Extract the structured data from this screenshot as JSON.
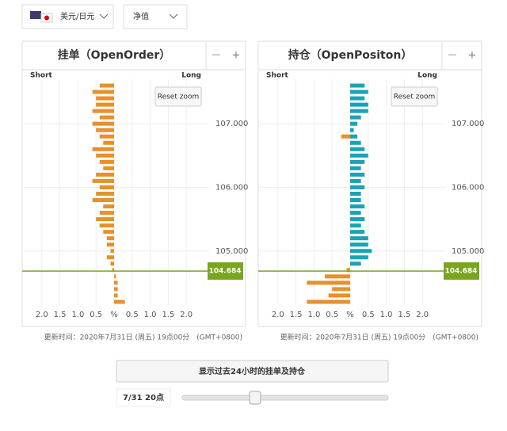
{
  "selector": {
    "pair": "美元/日元",
    "mode": "净值"
  },
  "chart_data": [
    {
      "type": "butterfly",
      "title": "挂单（OpenOrder）",
      "zoom_out": "—",
      "zoom_in": "+",
      "reset": "Reset zoom",
      "y": [
        107.6,
        107.5,
        107.4,
        107.3,
        107.2,
        107.1,
        107.0,
        106.9,
        106.8,
        106.7,
        106.6,
        106.5,
        106.4,
        106.3,
        106.2,
        106.1,
        106.0,
        105.9,
        105.8,
        105.7,
        105.6,
        105.5,
        105.4,
        105.3,
        105.2,
        105.1,
        105.0,
        104.9,
        104.8,
        104.7,
        104.6,
        104.5,
        104.4,
        104.3,
        104.2
      ],
      "series": [
        {
          "name": "Short",
          "color": "#e8902a",
          "values": [
            0.4,
            0.6,
            0.5,
            0.5,
            0.6,
            0.4,
            0.6,
            0.5,
            0.4,
            0.3,
            0.6,
            0.5,
            0.4,
            0.3,
            0.5,
            0.6,
            0.4,
            0.5,
            0.6,
            0.3,
            0.4,
            0.5,
            0.4,
            0.3,
            0.2,
            0.2,
            0.1,
            0.2,
            0.1,
            0.05,
            null,
            null,
            null,
            null,
            null
          ]
        },
        {
          "name": "Long",
          "color": "#e8902a",
          "values": [
            null,
            null,
            null,
            null,
            null,
            null,
            null,
            null,
            null,
            null,
            null,
            null,
            null,
            null,
            null,
            null,
            null,
            null,
            null,
            null,
            null,
            null,
            null,
            null,
            null,
            null,
            null,
            null,
            null,
            null,
            0.05,
            0.1,
            0.1,
            0.1,
            0.3
          ]
        }
      ],
      "xlim": [
        0,
        2.5
      ],
      "short_xticks": [
        {
          "value": 2,
          "label": "2.0"
        },
        {
          "value": 1.5,
          "label": "1.5"
        },
        {
          "value": 1,
          "label": "1.0"
        },
        0.5
      ],
      "zero_tick": {
        "value": 0,
        "label": "%"
      },
      "long_xticks": [
        0.5,
        {
          "value": 1,
          "label": "1.0"
        },
        1.5,
        {
          "value": 2,
          "label": "2.0"
        }
      ],
      "ylim": [
        104.15,
        107.7
      ],
      "yticks": [
        {
          "value": 107,
          "label": "107.000"
        },
        {
          "value": 106,
          "label": "106.000"
        },
        {
          "value": 105,
          "label": "105.000"
        }
      ],
      "current_price": 104.684,
      "price_color": "#7aa51e",
      "grid": true,
      "updated": "更新时间：2020年7月31日 (周五) 19点00分　(GMT+0800)"
    },
    {
      "type": "butterfly",
      "title": "持仓（OpenPositon）",
      "zoom_out": "—",
      "zoom_in": "+",
      "reset": "Reset zoom",
      "y": [
        107.6,
        107.5,
        107.4,
        107.3,
        107.2,
        107.1,
        107.0,
        106.9,
        106.8,
        106.7,
        106.6,
        106.5,
        106.4,
        106.3,
        106.2,
        106.1,
        106.0,
        105.9,
        105.8,
        105.7,
        105.6,
        105.5,
        105.4,
        105.3,
        105.2,
        105.1,
        105.0,
        104.9,
        104.8,
        104.7,
        104.6,
        104.5,
        104.4,
        104.3,
        104.2
      ],
      "series": [
        {
          "name": "Short",
          "color": "#e8902a",
          "values": [
            null,
            null,
            null,
            null,
            null,
            null,
            null,
            null,
            0.25,
            null,
            null,
            null,
            null,
            null,
            null,
            null,
            null,
            null,
            null,
            null,
            null,
            null,
            null,
            null,
            null,
            null,
            null,
            null,
            null,
            0.1,
            0.7,
            1.2,
            0.5,
            0.6,
            1.2
          ]
        },
        {
          "name": "Long",
          "color": "#1aa3b5",
          "values": [
            0.4,
            0.5,
            0.4,
            0.5,
            0.5,
            0.3,
            0.2,
            0.1,
            0.2,
            0.3,
            0.4,
            0.5,
            0.4,
            0.3,
            0.4,
            0.3,
            0.4,
            0.3,
            0.3,
            0.4,
            0.3,
            0.4,
            0.3,
            0.4,
            0.5,
            0.5,
            0.6,
            0.5,
            0.3,
            null,
            null,
            null,
            null,
            null,
            null
          ]
        }
      ],
      "xlim": [
        0,
        2.5
      ],
      "short_xticks": [
        {
          "value": 2,
          "label": "2.0"
        },
        {
          "value": 1.5,
          "label": "1.5"
        },
        {
          "value": 1,
          "label": "1.0"
        },
        0.5
      ],
      "zero_tick": {
        "value": 0,
        "label": "%"
      },
      "long_xticks": [
        0.5,
        {
          "value": 1,
          "label": "1.0"
        },
        1.5,
        {
          "value": 2,
          "label": "2.0"
        }
      ],
      "ylim": [
        104.15,
        107.7
      ],
      "yticks": [
        {
          "value": 107,
          "label": "107.000"
        },
        {
          "value": 106,
          "label": "106.000"
        },
        {
          "value": 105,
          "label": "105.000"
        }
      ],
      "current_price": 104.684,
      "price_color": "#7aa51e",
      "grid": true,
      "updated": "更新时间：2020年7月31日 (周五) 19点00分　(GMT+0800)"
    }
  ],
  "controls": {
    "button": "显示过去24小时的挂单及持仓",
    "time": "7/31 20点"
  }
}
